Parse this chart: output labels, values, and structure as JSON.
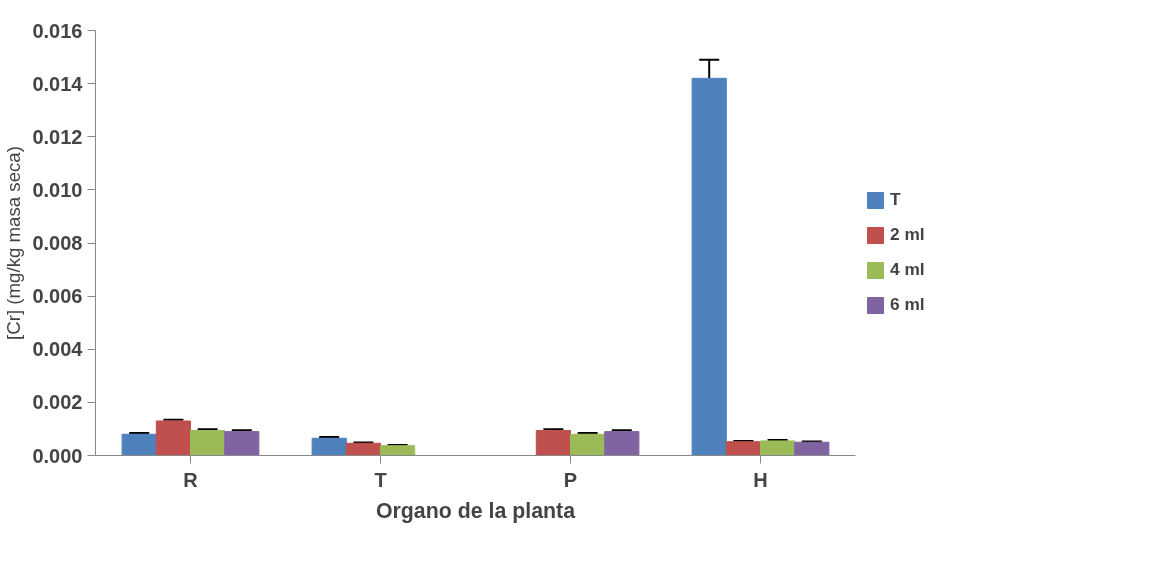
{
  "chart_data": {
    "type": "bar",
    "xlabel": "Organo de la planta",
    "ylabel": "[Cr] (mg/kg masa seca)",
    "categories": [
      "R",
      "T",
      "P",
      "H"
    ],
    "series": [
      {
        "name": "T",
        "color": "#4f81bd",
        "values": [
          0.0008,
          0.00065,
          null,
          0.0142
        ],
        "errors": [
          5e-05,
          5e-05,
          null,
          0.0007
        ]
      },
      {
        "name": "2 ml",
        "color": "#c0504d",
        "values": [
          0.0013,
          0.00046,
          0.00094,
          0.00052
        ],
        "errors": [
          5e-05,
          3e-05,
          5e-05,
          3e-05
        ]
      },
      {
        "name": "4 ml",
        "color": "#9bbb59",
        "values": [
          0.00094,
          0.00037,
          0.0008,
          0.00055
        ],
        "errors": [
          5e-05,
          3e-05,
          5e-05,
          3e-05
        ]
      },
      {
        "name": "6 ml",
        "color": "#8064a2",
        "values": [
          0.0009,
          null,
          0.0009,
          0.0005
        ],
        "errors": [
          5e-05,
          null,
          5e-05,
          3e-05
        ]
      }
    ],
    "ylim": [
      0,
      0.016
    ],
    "yticks": [
      {
        "value": 0,
        "label": "0.000"
      },
      {
        "value": 0.002,
        "label": "0.002"
      },
      {
        "value": 0.004,
        "label": "0.004"
      },
      {
        "value": 0.006,
        "label": "0.006"
      },
      {
        "value": 0.008,
        "label": "0.008"
      },
      {
        "value": 0.01,
        "label": "0.010"
      },
      {
        "value": 0.012,
        "label": "0.012"
      },
      {
        "value": 0.014,
        "label": "0.014"
      },
      {
        "value": 0.016,
        "label": "0.016"
      }
    ],
    "grid": false,
    "legend": "right"
  }
}
